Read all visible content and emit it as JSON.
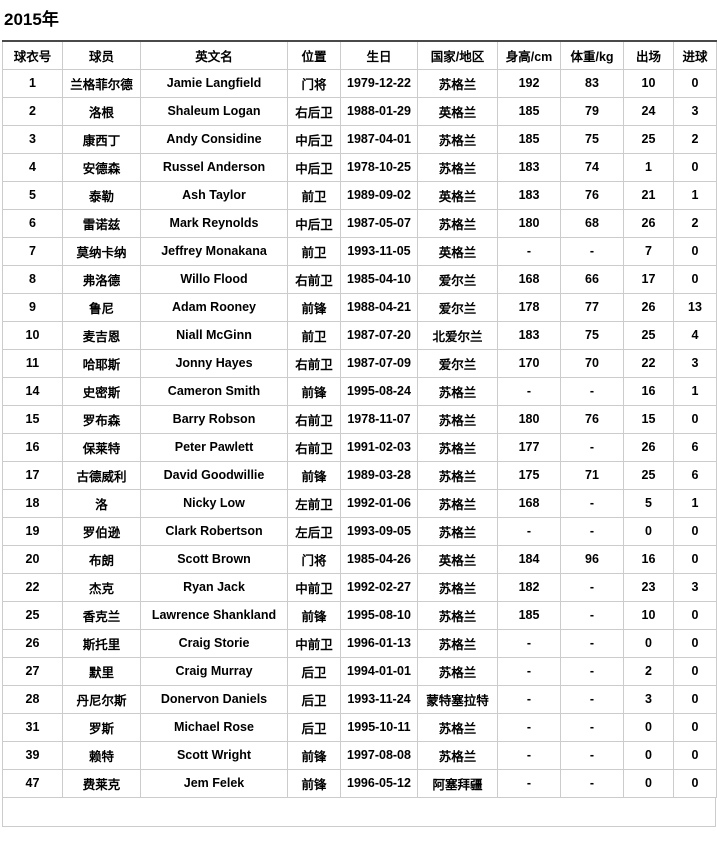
{
  "page": {
    "title": "2015年"
  },
  "colors": {
    "table_top_border": "#4a4a4a",
    "cell_border": "#cccccc",
    "footer_bar": "#e8e8e8",
    "text": "#000000",
    "background": "#ffffff"
  },
  "table": {
    "columns": [
      "球衣号",
      "球员",
      "英文名",
      "位置",
      "生日",
      "国家/地区",
      "身高/cm",
      "体重/kg",
      "出场",
      "进球"
    ],
    "rows": [
      [
        "1",
        "兰格菲尔德",
        "Jamie Langfield",
        "门将",
        "1979-12-22",
        "苏格兰",
        "192",
        "83",
        "10",
        "0"
      ],
      [
        "2",
        "洛根",
        "Shaleum Logan",
        "右后卫",
        "1988-01-29",
        "英格兰",
        "185",
        "79",
        "24",
        "3"
      ],
      [
        "3",
        "康西丁",
        "Andy Considine",
        "中后卫",
        "1987-04-01",
        "苏格兰",
        "185",
        "75",
        "25",
        "2"
      ],
      [
        "4",
        "安德森",
        "Russel Anderson",
        "中后卫",
        "1978-10-25",
        "苏格兰",
        "183",
        "74",
        "1",
        "0"
      ],
      [
        "5",
        "泰勒",
        "Ash Taylor",
        "前卫",
        "1989-09-02",
        "英格兰",
        "183",
        "76",
        "21",
        "1"
      ],
      [
        "6",
        "雷诺兹",
        "Mark Reynolds",
        "中后卫",
        "1987-05-07",
        "苏格兰",
        "180",
        "68",
        "26",
        "2"
      ],
      [
        "7",
        "莫纳卡纳",
        "Jeffrey Monakana",
        "前卫",
        "1993-11-05",
        "英格兰",
        "-",
        "-",
        "7",
        "0"
      ],
      [
        "8",
        "弗洛德",
        "Willo Flood",
        "右前卫",
        "1985-04-10",
        "爱尔兰",
        "168",
        "66",
        "17",
        "0"
      ],
      [
        "9",
        "鲁尼",
        "Adam Rooney",
        "前锋",
        "1988-04-21",
        "爱尔兰",
        "178",
        "77",
        "26",
        "13"
      ],
      [
        "10",
        "麦吉恩",
        "Niall McGinn",
        "前卫",
        "1987-07-20",
        "北爱尔兰",
        "183",
        "75",
        "25",
        "4"
      ],
      [
        "11",
        "哈耶斯",
        "Jonny Hayes",
        "右前卫",
        "1987-07-09",
        "爱尔兰",
        "170",
        "70",
        "22",
        "3"
      ],
      [
        "14",
        "史密斯",
        "Cameron Smith",
        "前锋",
        "1995-08-24",
        "苏格兰",
        "-",
        "-",
        "16",
        "1"
      ],
      [
        "15",
        "罗布森",
        "Barry Robson",
        "右前卫",
        "1978-11-07",
        "苏格兰",
        "180",
        "76",
        "15",
        "0"
      ],
      [
        "16",
        "保莱特",
        "Peter Pawlett",
        "右前卫",
        "1991-02-03",
        "苏格兰",
        "177",
        "-",
        "26",
        "6"
      ],
      [
        "17",
        "古德威利",
        "David Goodwillie",
        "前锋",
        "1989-03-28",
        "苏格兰",
        "175",
        "71",
        "25",
        "6"
      ],
      [
        "18",
        "洛",
        "Nicky Low",
        "左前卫",
        "1992-01-06",
        "苏格兰",
        "168",
        "-",
        "5",
        "1"
      ],
      [
        "19",
        "罗伯逊",
        "Clark Robertson",
        "左后卫",
        "1993-09-05",
        "苏格兰",
        "-",
        "-",
        "0",
        "0"
      ],
      [
        "20",
        "布朗",
        "Scott Brown",
        "门将",
        "1985-04-26",
        "英格兰",
        "184",
        "96",
        "16",
        "0"
      ],
      [
        "22",
        "杰克",
        "Ryan Jack",
        "中前卫",
        "1992-02-27",
        "苏格兰",
        "182",
        "-",
        "23",
        "3"
      ],
      [
        "25",
        "香克兰",
        "Lawrence Shankland",
        "前锋",
        "1995-08-10",
        "苏格兰",
        "185",
        "-",
        "10",
        "0"
      ],
      [
        "26",
        "斯托里",
        "Craig Storie",
        "中前卫",
        "1996-01-13",
        "苏格兰",
        "-",
        "-",
        "0",
        "0"
      ],
      [
        "27",
        "默里",
        "Craig Murray",
        "后卫",
        "1994-01-01",
        "苏格兰",
        "-",
        "-",
        "2",
        "0"
      ],
      [
        "28",
        "丹尼尔斯",
        "Donervon Daniels",
        "后卫",
        "1993-11-24",
        "蒙特塞拉特",
        "-",
        "-",
        "3",
        "0"
      ],
      [
        "31",
        "罗斯",
        "Michael Rose",
        "后卫",
        "1995-10-11",
        "苏格兰",
        "-",
        "-",
        "0",
        "0"
      ],
      [
        "39",
        "赖特",
        "Scott Wright",
        "前锋",
        "1997-08-08",
        "苏格兰",
        "-",
        "-",
        "0",
        "0"
      ],
      [
        "47",
        "费莱克",
        "Jem Felek",
        "前锋",
        "1996-05-12",
        "阿塞拜疆",
        "-",
        "-",
        "0",
        "0"
      ]
    ]
  }
}
